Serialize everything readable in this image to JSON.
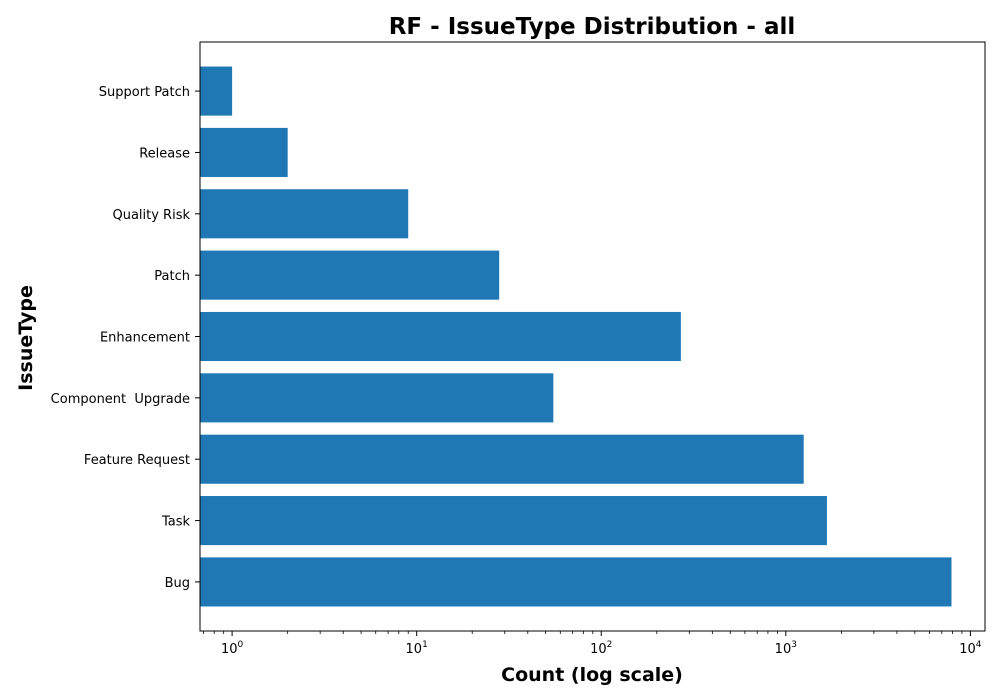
{
  "chart_data": {
    "type": "bar",
    "orientation": "horizontal",
    "title": "RF - IssueType Distribution - all",
    "xlabel": "Count (log scale)",
    "ylabel": "IssueType",
    "x_scale": "log",
    "xlim": [
      0.67,
      12000
    ],
    "x_ticks": [
      {
        "base": "10",
        "exp": "0",
        "value": 1
      },
      {
        "base": "10",
        "exp": "1",
        "value": 10
      },
      {
        "base": "10",
        "exp": "2",
        "value": 100
      },
      {
        "base": "10",
        "exp": "3",
        "value": 1000
      },
      {
        "base": "10",
        "exp": "4",
        "value": 10000
      }
    ],
    "grid": false,
    "bar_color": "#1f77b4",
    "categories": [
      "Support Patch",
      "Release",
      "Quality Risk",
      "Patch",
      "Enhancement",
      "Component  Upgrade",
      "Feature Request",
      "Task",
      "Bug"
    ],
    "values": [
      1,
      2,
      9,
      28,
      270,
      55,
      1250,
      1670,
      7900
    ]
  }
}
